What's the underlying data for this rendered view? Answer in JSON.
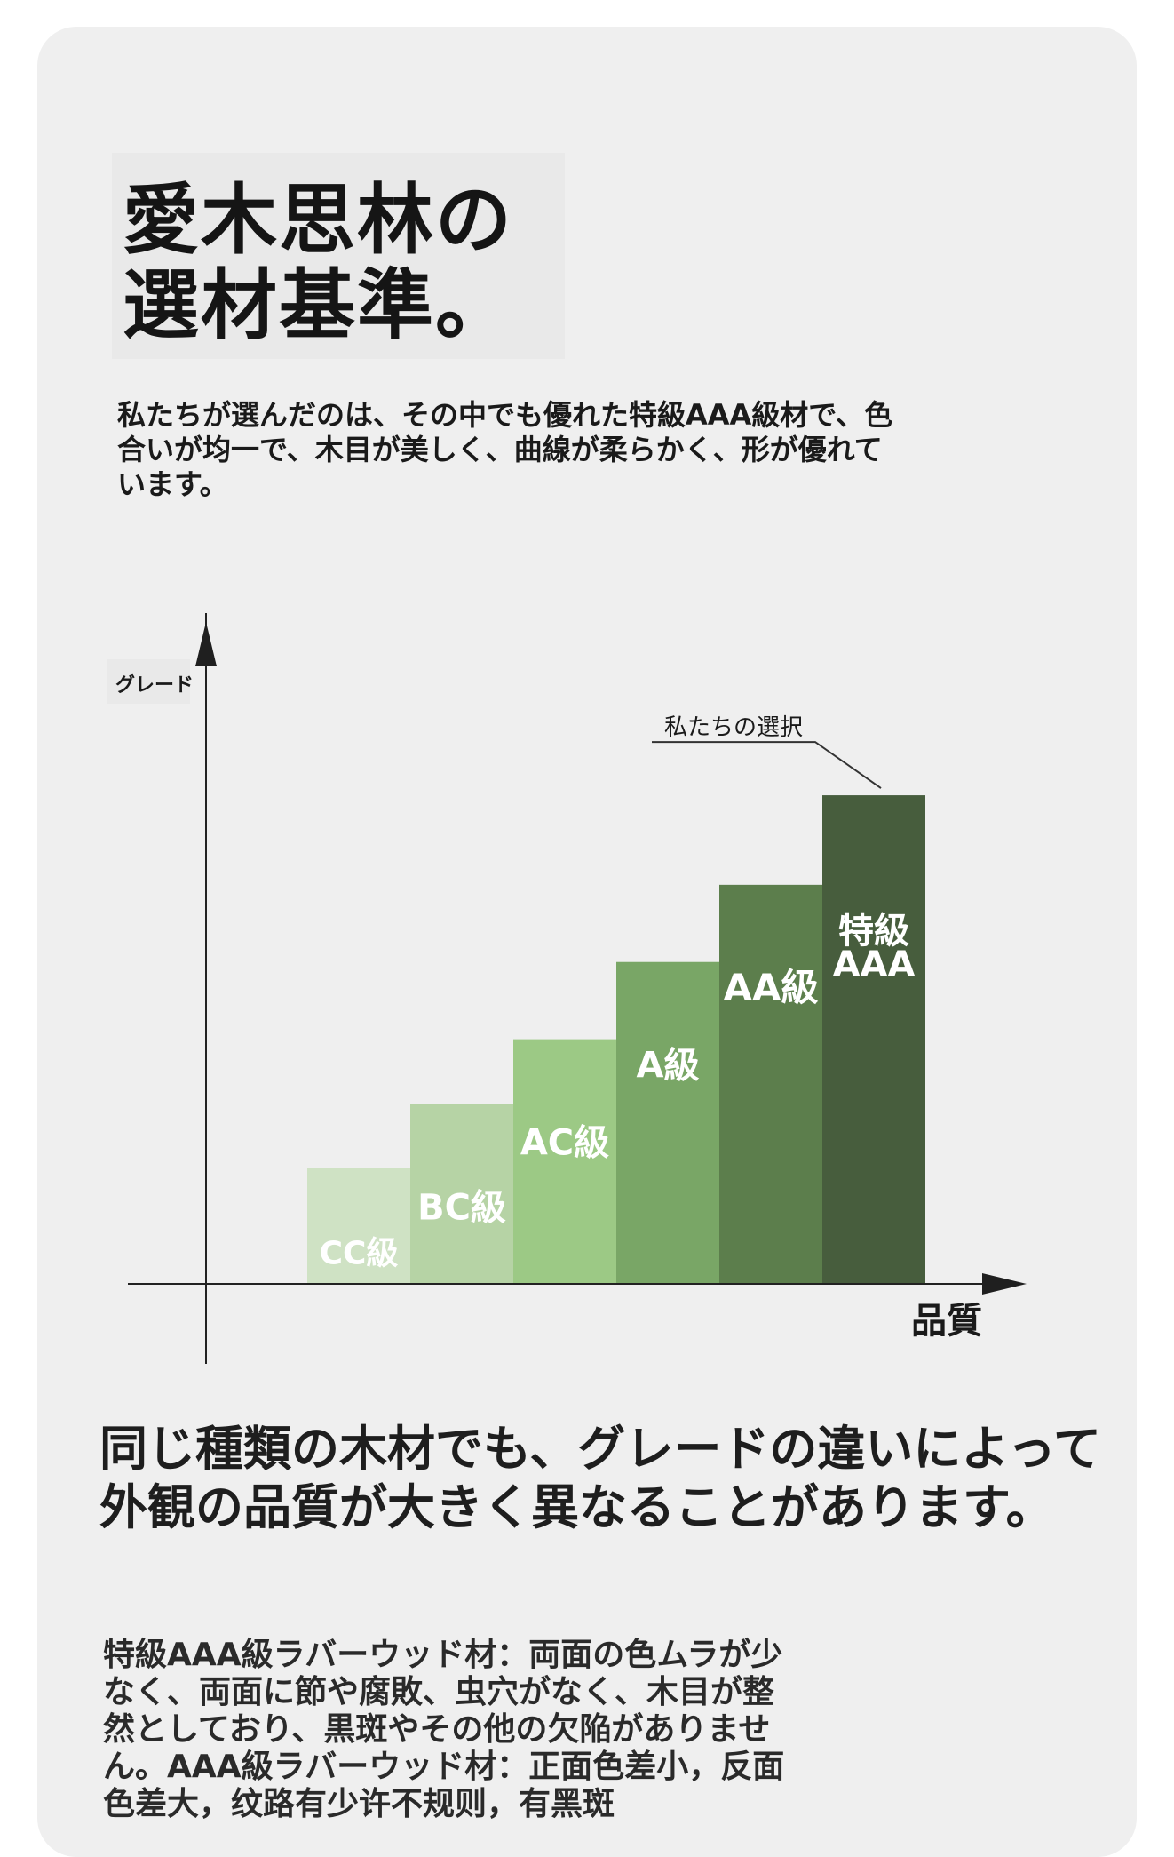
{
  "title_line1": "愛木思林の",
  "title_line2": "選材基準。",
  "intro": "私たちが選んだのは、その中でも優れた特級AAA級材で、色合いが均一で、木目が美しく、曲線が柔らかく、形が優れています。",
  "chart_data": {
    "type": "bar",
    "ylabel": "グレード",
    "xlabel": "品質",
    "categories": [
      "CC級",
      "BC級",
      "AC級",
      "A級",
      "AA級",
      "特級AAA"
    ],
    "values": [
      1.5,
      2.33,
      3.17,
      4.17,
      5.17,
      6.33
    ],
    "colors": [
      "#cfe2c4",
      "#b6d3a5",
      "#9cc985",
      "#79a666",
      "#5c7e4c",
      "#475d3d"
    ],
    "annotation": "私たちの選択",
    "annotation_target": "特級AAA",
    "ylim": [
      0,
      8
    ],
    "grid": false
  },
  "headline": "同じ種類の木材でも、グレードの違いによって外観の品質が大きく異なることがあります。",
  "desc": "特級AAA級ラバーウッド材：両面の色ムラが少なく、両面に節や腐敗、虫穴がなく、木目が整然としており、黒斑やその他の欠陥がありません。AAA級ラバーウッド材：正面色差小，反面色差大，纹路有少许不规则，有黑斑"
}
